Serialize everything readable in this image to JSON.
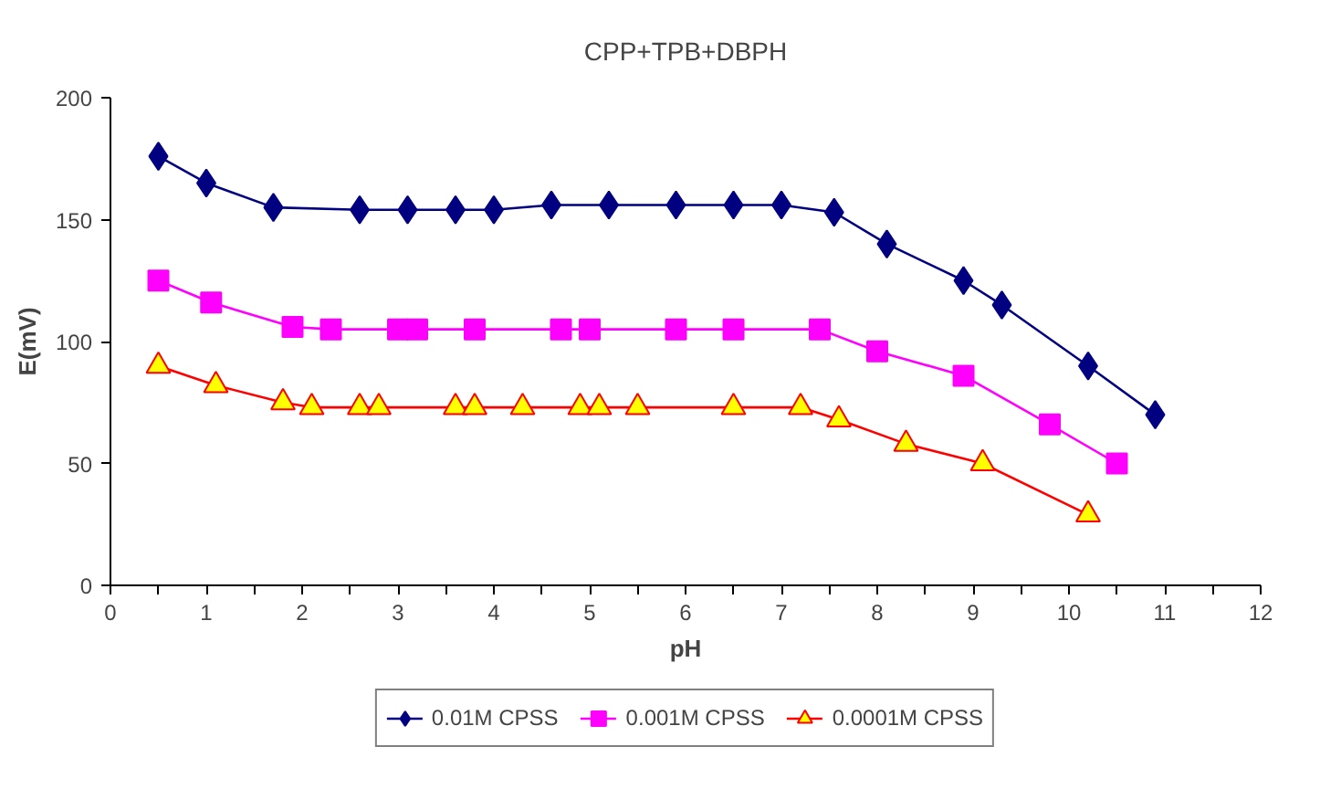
{
  "chart_data": {
    "type": "line",
    "title": "CPP+TPB+DBPH",
    "xlabel": "pH",
    "ylabel": "E(mV)",
    "xlim": [
      0,
      12
    ],
    "xticks": [
      0,
      1,
      2,
      3,
      4,
      5,
      6,
      7,
      8,
      9,
      10,
      11,
      12
    ],
    "ylim": [
      0,
      200
    ],
    "yticks": [
      0,
      50,
      100,
      150,
      200
    ],
    "grid": false,
    "legend": "bottom",
    "line_style": "solid",
    "series": [
      {
        "name": "0.01M CPSS",
        "color": "#000080",
        "marker": "diamond",
        "x": [
          0.5,
          1.0,
          1.7,
          2.6,
          3.1,
          3.6,
          4.0,
          4.6,
          5.2,
          5.9,
          6.5,
          7.0,
          7.55,
          8.1,
          8.9,
          9.3,
          10.2,
          10.9
        ],
        "values": [
          176,
          165,
          155,
          154,
          154,
          154,
          154,
          156,
          156,
          156,
          156,
          156,
          153,
          140,
          125,
          115,
          90,
          70
        ]
      },
      {
        "name": "0.001M CPSS",
        "color": "#ff00ff",
        "marker": "square",
        "x": [
          0.5,
          1.05,
          1.9,
          2.3,
          3.0,
          3.2,
          3.8,
          4.7,
          5.0,
          5.9,
          6.5,
          7.4,
          8.0,
          8.9,
          9.8,
          10.5
        ],
        "values": [
          125,
          116,
          106,
          105,
          105,
          105,
          105,
          105,
          105,
          105,
          105,
          105,
          96,
          86,
          66,
          50
        ]
      },
      {
        "name": "0.0001M CPSS",
        "color": "#ff0000",
        "marker": "triangle",
        "x": [
          0.5,
          1.1,
          1.8,
          2.1,
          2.6,
          2.8,
          3.6,
          3.8,
          4.3,
          4.9,
          5.1,
          5.5,
          6.5,
          7.2,
          7.6,
          8.3,
          9.1,
          10.2
        ],
        "values": [
          90,
          82,
          75,
          73,
          73,
          73,
          73,
          73,
          73,
          73,
          73,
          73,
          73,
          73,
          68,
          58,
          50,
          29
        ]
      }
    ]
  }
}
